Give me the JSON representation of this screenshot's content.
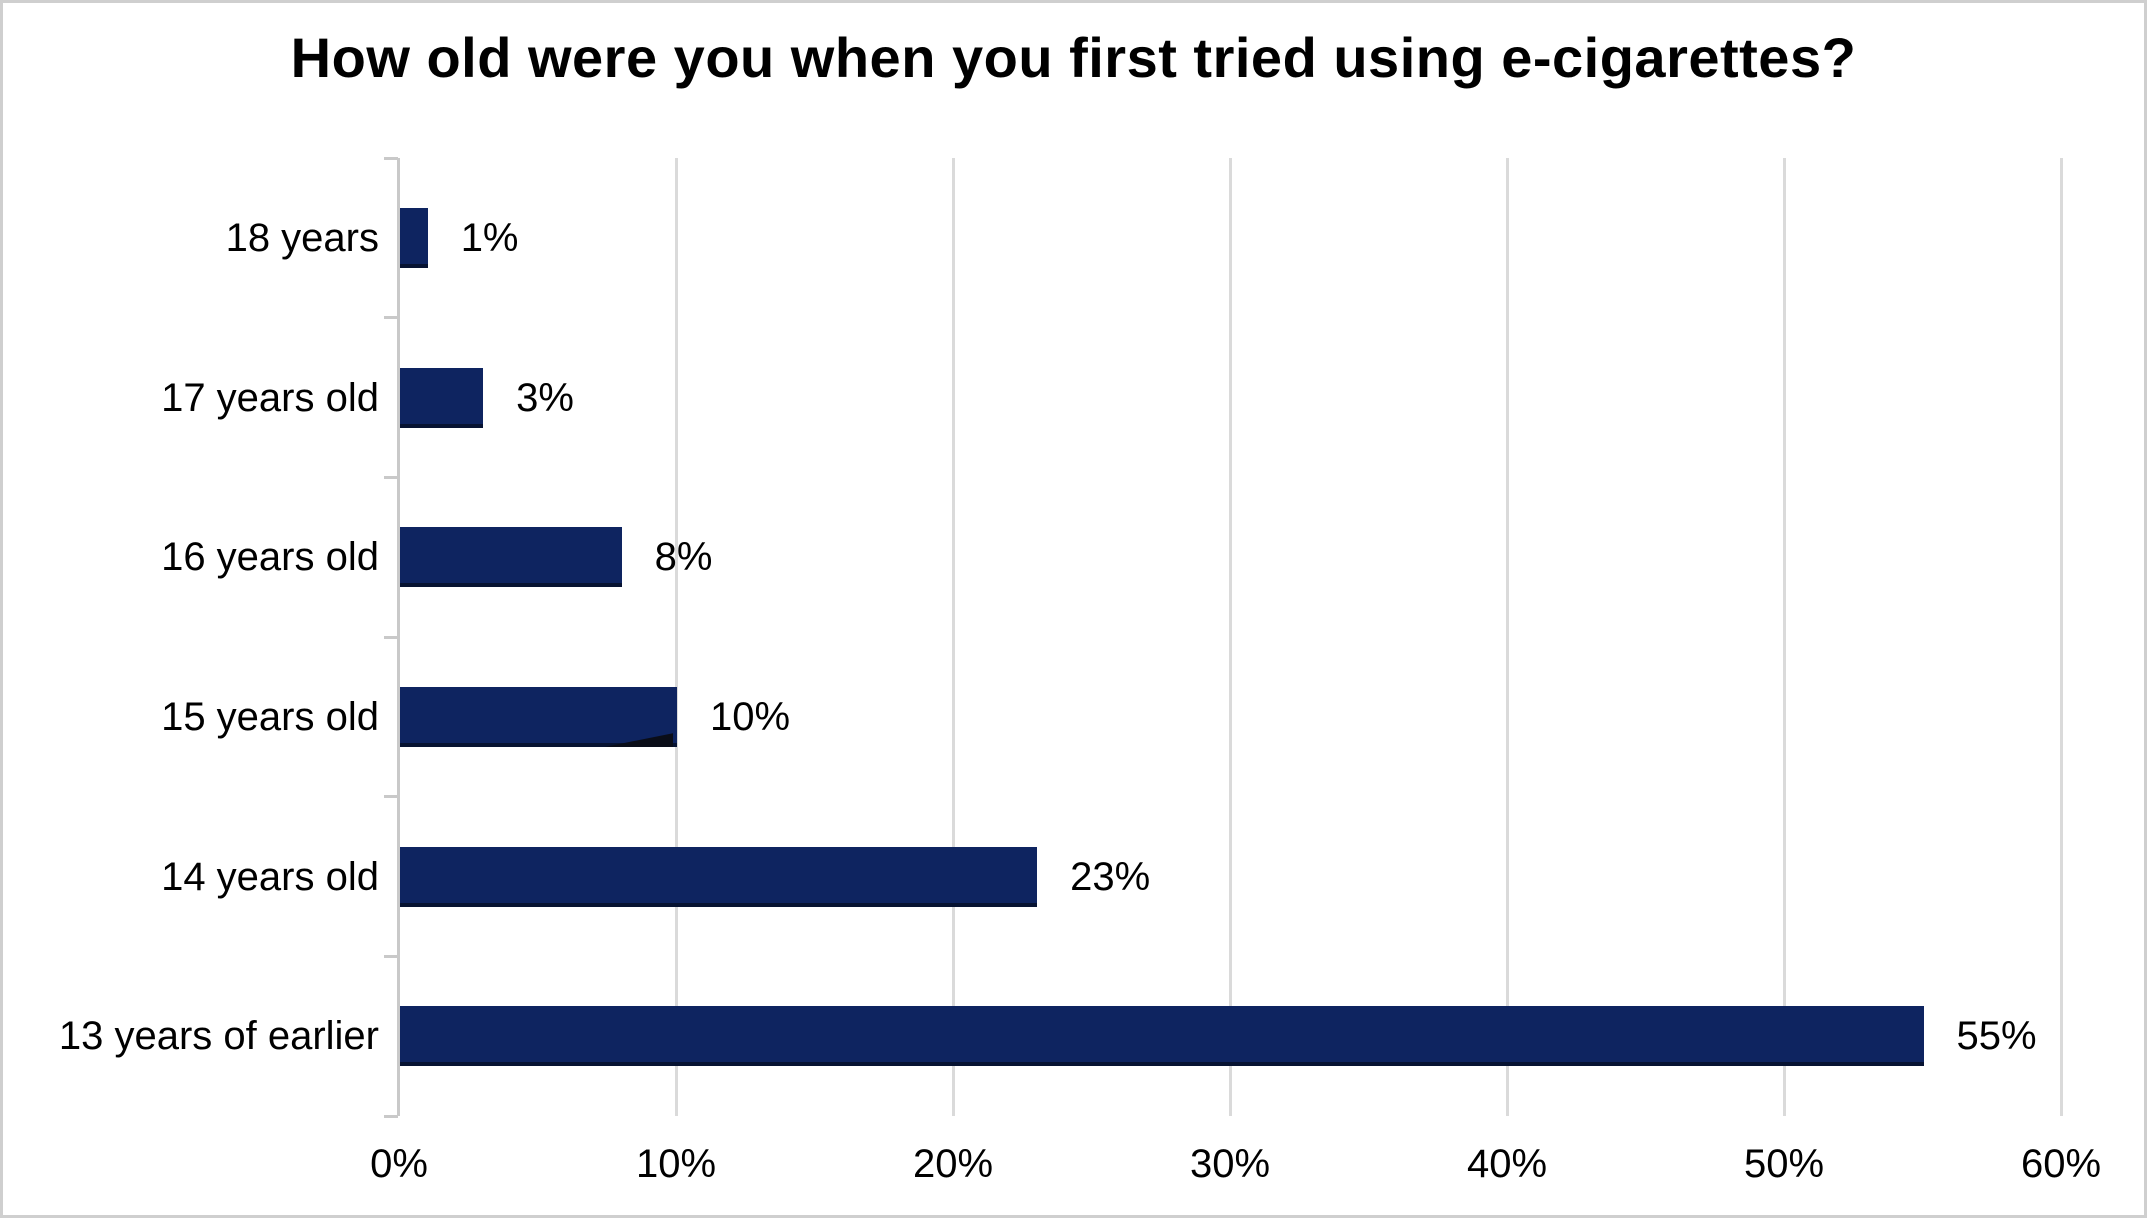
{
  "frame": {
    "background": "#ffffff",
    "border_color": "#cfcfcf"
  },
  "chart_data": {
    "type": "bar",
    "orientation": "horizontal",
    "title": "How old were you when you first tried using e-cigarettes?",
    "categories": [
      "18 years",
      "17 years old",
      "16 years old",
      "15 years old",
      "14 years old",
      "13 years of earlier"
    ],
    "values": [
      1,
      3,
      8,
      10,
      23,
      55
    ],
    "value_labels": [
      "1%",
      "3%",
      "8%",
      "10%",
      "23%",
      "55%"
    ],
    "x_ticks": [
      "0%",
      "10%",
      "20%",
      "30%",
      "40%",
      "50%",
      "60%"
    ],
    "xlim": [
      0,
      60
    ],
    "xlabel": "",
    "ylabel": "",
    "grid": true,
    "legend": false,
    "bar_color": "#0e2460",
    "gridline_color": "#dadada",
    "axis_color": "#c9c9c9",
    "text_color": "#000000"
  }
}
